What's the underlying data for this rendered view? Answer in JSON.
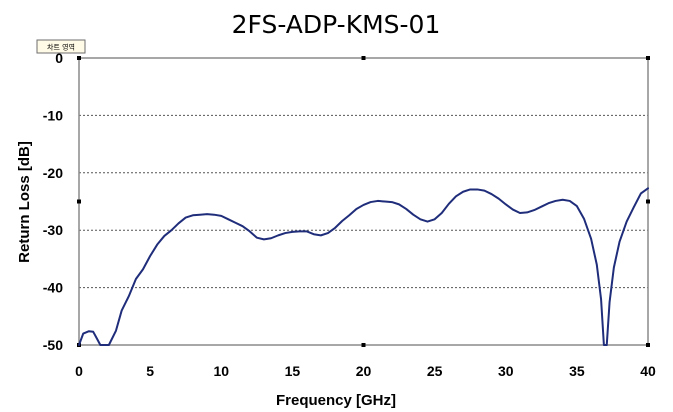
{
  "chart_data": {
    "type": "line",
    "title": "2FS-ADP-KMS-01",
    "xlabel": "Frequency [GHz]",
    "ylabel": "Return Loss [dB]",
    "xlim": [
      0,
      40
    ],
    "ylim": [
      -50,
      0
    ],
    "x_ticks": [
      "0",
      "5",
      "10",
      "15",
      "20",
      "25",
      "30",
      "35",
      "40"
    ],
    "y_ticks": [
      "0",
      "-10",
      "-20",
      "-30",
      "-40",
      "-50"
    ],
    "grid": "horizontal dotted",
    "legend": "none",
    "chart_area_tag": "차트 영역",
    "colors": {
      "line": "#1f2d7a",
      "grid": "#555555",
      "plot_border": "#8a8a8a"
    },
    "series": [
      {
        "points": [
          [
            0.0,
            -50.0
          ],
          [
            0.3,
            -48.0
          ],
          [
            0.7,
            -47.6
          ],
          [
            1.0,
            -47.7
          ],
          [
            1.2,
            -48.6
          ],
          [
            1.5,
            -50.0
          ],
          [
            2.1,
            -50.0
          ],
          [
            2.6,
            -47.5
          ],
          [
            3.0,
            -44.0
          ],
          [
            3.5,
            -41.5
          ],
          [
            4.0,
            -38.5
          ],
          [
            4.5,
            -36.8
          ],
          [
            5.0,
            -34.5
          ],
          [
            5.5,
            -32.5
          ],
          [
            6.0,
            -31.0
          ],
          [
            6.5,
            -30.0
          ],
          [
            7.0,
            -28.8
          ],
          [
            7.5,
            -27.8
          ],
          [
            8.0,
            -27.4
          ],
          [
            8.5,
            -27.3
          ],
          [
            9.0,
            -27.2
          ],
          [
            9.5,
            -27.3
          ],
          [
            10.0,
            -27.5
          ],
          [
            10.5,
            -28.1
          ],
          [
            11.0,
            -28.7
          ],
          [
            11.5,
            -29.3
          ],
          [
            12.0,
            -30.2
          ],
          [
            12.5,
            -31.3
          ],
          [
            13.0,
            -31.6
          ],
          [
            13.5,
            -31.4
          ],
          [
            14.0,
            -30.9
          ],
          [
            14.5,
            -30.5
          ],
          [
            15.0,
            -30.3
          ],
          [
            15.5,
            -30.2
          ],
          [
            16.0,
            -30.2
          ],
          [
            16.5,
            -30.7
          ],
          [
            17.0,
            -30.9
          ],
          [
            17.5,
            -30.5
          ],
          [
            18.0,
            -29.6
          ],
          [
            18.5,
            -28.4
          ],
          [
            19.0,
            -27.4
          ],
          [
            19.5,
            -26.3
          ],
          [
            20.0,
            -25.6
          ],
          [
            20.5,
            -25.1
          ],
          [
            21.0,
            -24.9
          ],
          [
            21.5,
            -25.0
          ],
          [
            22.0,
            -25.1
          ],
          [
            22.5,
            -25.5
          ],
          [
            23.0,
            -26.3
          ],
          [
            23.5,
            -27.3
          ],
          [
            24.0,
            -28.1
          ],
          [
            24.5,
            -28.5
          ],
          [
            25.0,
            -28.1
          ],
          [
            25.5,
            -27.0
          ],
          [
            26.0,
            -25.4
          ],
          [
            26.5,
            -24.1
          ],
          [
            27.0,
            -23.3
          ],
          [
            27.5,
            -22.9
          ],
          [
            28.0,
            -22.9
          ],
          [
            28.5,
            -23.1
          ],
          [
            29.0,
            -23.7
          ],
          [
            29.5,
            -24.5
          ],
          [
            30.0,
            -25.5
          ],
          [
            30.5,
            -26.4
          ],
          [
            31.0,
            -27.0
          ],
          [
            31.5,
            -26.9
          ],
          [
            32.0,
            -26.5
          ],
          [
            32.5,
            -25.9
          ],
          [
            33.0,
            -25.3
          ],
          [
            33.5,
            -24.9
          ],
          [
            34.0,
            -24.7
          ],
          [
            34.5,
            -24.9
          ],
          [
            35.0,
            -25.8
          ],
          [
            35.5,
            -28.0
          ],
          [
            36.0,
            -31.5
          ],
          [
            36.4,
            -36.0
          ],
          [
            36.7,
            -42.0
          ],
          [
            36.9,
            -50.0
          ],
          [
            37.1,
            -50.0
          ],
          [
            37.3,
            -42.5
          ],
          [
            37.6,
            -36.5
          ],
          [
            38.0,
            -32.0
          ],
          [
            38.5,
            -28.5
          ],
          [
            39.0,
            -26.0
          ],
          [
            39.5,
            -23.6
          ],
          [
            40.0,
            -22.7
          ]
        ]
      }
    ]
  }
}
